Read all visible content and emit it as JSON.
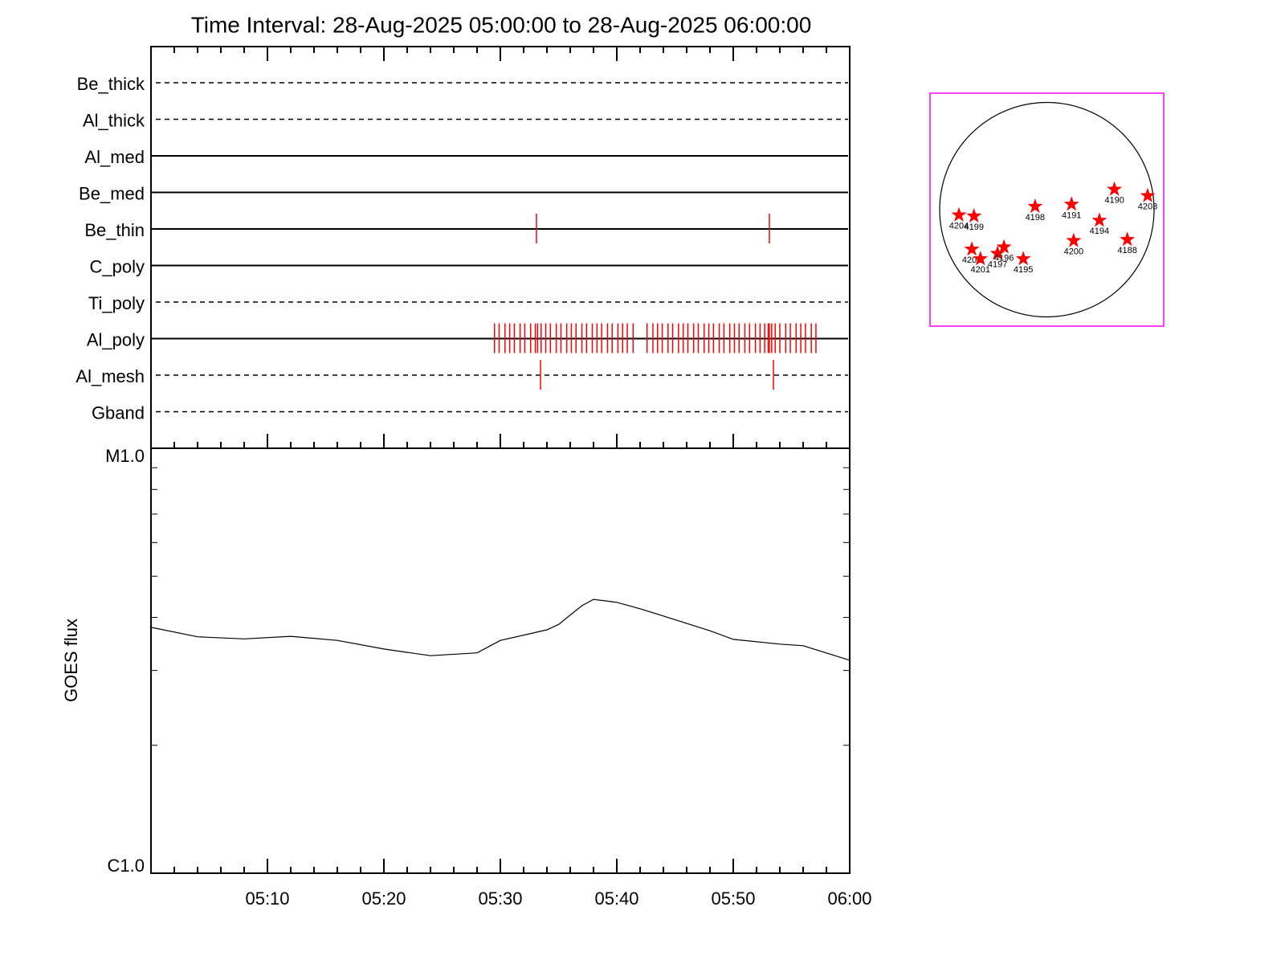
{
  "chart_data": [
    {
      "type": "timeline",
      "title": "Time Interval: 28-Aug-2025 05:00:00 to 28-Aug-2025 06:00:00",
      "color": "#ff0000",
      "rows": [
        {
          "name": "Be_thick",
          "line_style": "dashed",
          "events": []
        },
        {
          "name": "Al_thick",
          "line_style": "dashed",
          "events": []
        },
        {
          "name": "Al_med",
          "line_style": "solid",
          "events": []
        },
        {
          "name": "Be_med",
          "line_style": "solid",
          "events": []
        },
        {
          "name": "Be_thin",
          "line_style": "solid",
          "events": [
            33.1,
            53.1
          ]
        },
        {
          "name": "C_poly",
          "line_style": "solid",
          "events": []
        },
        {
          "name": "Ti_poly",
          "line_style": "dashed",
          "events": []
        },
        {
          "name": "Al_poly",
          "line_style": "solid",
          "events": [
            29.5,
            29.9,
            30.4,
            30.8,
            31.2,
            31.7,
            32.1,
            32.6,
            33.0,
            33.2,
            33.5,
            33.9,
            34.3,
            34.8,
            35.2,
            35.7,
            36.1,
            36.5,
            37.0,
            37.4,
            37.9,
            38.3,
            38.7,
            39.2,
            39.6,
            40.1,
            40.5,
            40.9,
            41.4,
            42.6,
            43.1,
            43.5,
            43.9,
            44.4,
            44.8,
            45.3,
            45.7,
            46.1,
            46.6,
            47.0,
            47.5,
            47.9,
            48.3,
            48.8,
            49.2,
            49.7,
            50.1,
            50.5,
            51.0,
            51.4,
            51.9,
            52.3,
            52.7,
            53.0,
            53.1,
            53.3,
            53.6,
            54.0,
            54.5,
            54.9,
            55.4,
            55.8,
            56.2,
            56.7,
            57.1
          ]
        },
        {
          "name": "Al_mesh",
          "line_style": "dashed",
          "events": [
            33.45,
            53.45
          ]
        },
        {
          "name": "Gband",
          "line_style": "dashed",
          "events": []
        }
      ]
    },
    {
      "type": "line",
      "y_label": "GOES flux",
      "color": "#000000",
      "log_scale": true,
      "x": [
        0,
        4,
        8,
        12,
        16,
        20,
        24,
        28,
        30,
        34,
        35,
        37,
        38,
        40,
        42,
        44,
        48,
        50,
        54,
        56,
        60
      ],
      "values": [
        3.79e-06,
        3.6e-06,
        3.56e-06,
        3.61e-06,
        3.53e-06,
        3.37e-06,
        3.25e-06,
        3.3e-06,
        3.53e-06,
        3.74e-06,
        3.85e-06,
        4.26e-06,
        4.41e-06,
        4.34e-06,
        4.19e-06,
        4.03e-06,
        3.72e-06,
        3.55e-06,
        3.46e-06,
        3.43e-06,
        3.17e-06
      ],
      "xlim": [
        0,
        60
      ],
      "xticks": [
        {
          "value": 10,
          "label": "05:10"
        },
        {
          "value": 20,
          "label": "05:20"
        },
        {
          "value": 30,
          "label": "05:30"
        },
        {
          "value": 40,
          "label": "05:40"
        },
        {
          "value": 50,
          "label": "05:50"
        },
        {
          "value": 60,
          "label": "06:00"
        }
      ],
      "xminorticks": [
        2,
        4,
        6,
        8,
        12,
        14,
        16,
        18,
        22,
        24,
        26,
        28,
        32,
        34,
        36,
        38,
        42,
        44,
        46,
        48,
        52,
        54,
        56,
        58
      ],
      "ylim": [
        1e-06,
        1e-05
      ],
      "yticks": [
        {
          "value": 1e-06,
          "label": "C1.0"
        },
        {
          "value": 1e-05,
          "label": "M1.0"
        }
      ],
      "yminorticks": [
        2e-06,
        3e-06,
        4e-06,
        5e-06,
        6e-06,
        7e-06,
        8e-06,
        9e-06
      ]
    },
    {
      "type": "scatter",
      "color": "#ff0000",
      "frame_color": "#ff00ff",
      "disk_radius": 1,
      "xlim": [
        -1.09,
        1.09
      ],
      "ylim": [
        -1.09,
        1.09
      ],
      "labels": [
        "4204",
        "4199",
        "4198",
        "4191",
        "4190",
        "4203",
        "4194",
        "4188",
        "4200",
        "4202",
        "4201",
        "4197",
        "4196",
        "4195"
      ],
      "x": [
        -0.82,
        -0.68,
        -0.11,
        0.23,
        0.63,
        0.94,
        0.49,
        0.75,
        0.25,
        -0.7,
        -0.62,
        -0.46,
        -0.4,
        -0.22
      ],
      "y": [
        -0.05,
        -0.06,
        0.03,
        0.05,
        0.19,
        0.13,
        -0.1,
        -0.28,
        -0.29,
        -0.37,
        -0.46,
        -0.41,
        -0.35,
        -0.46
      ]
    }
  ]
}
